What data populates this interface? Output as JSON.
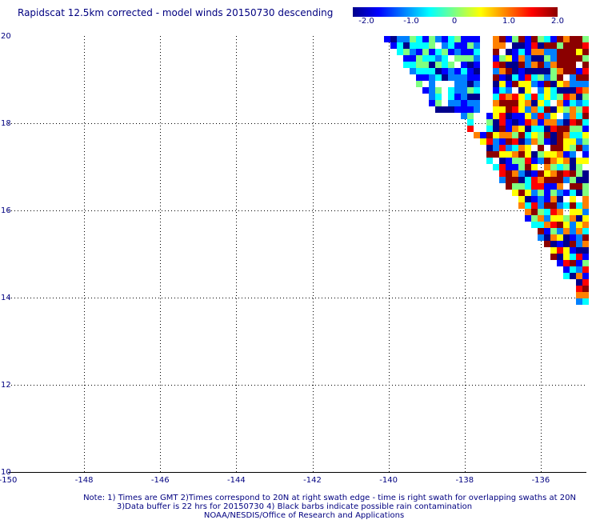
{
  "title": "Rapidscat 12.5km corrected - model winds 20150730 descending",
  "colorbar": {
    "labels": [
      "-2.0",
      "-1.0",
      "0",
      "1.0",
      "2.0"
    ],
    "values": [
      -2.0,
      -1.0,
      0,
      1.0,
      2.0
    ],
    "range": [
      -2.0,
      2.0
    ],
    "colors": [
      "#00008b",
      "#0000ff",
      "#0080ff",
      "#00ffff",
      "#80ff80",
      "#ffff00",
      "#ff8000",
      "#ff0000",
      "#8b0000"
    ]
  },
  "axes": {
    "lon_labels": [
      "-150",
      "-148",
      "-146",
      "-144",
      "-142",
      "-140",
      "-138",
      "-136"
    ],
    "lon_values": [
      -150,
      -148,
      -146,
      -144,
      -142,
      -140,
      -138,
      -136
    ],
    "lat_labels": [
      "20",
      "18",
      "16",
      "14",
      "12",
      "10"
    ],
    "lat_values": [
      20,
      18,
      16,
      14,
      12,
      10
    ],
    "lon_range": [
      -150,
      -134.8
    ],
    "lat_range": [
      10,
      20
    ],
    "grid": true
  },
  "notes": {
    "line1": "Note: 1) Times are GMT 2)Times correspond to 20N at right swath edge - time is right swath for overlapping swaths at 20N",
    "line2": "3)Data buffer is 22 hrs for 20150730 4) Black barbs indicate possible rain contamination",
    "line3": "NOAA/NESDIS/Office of Research and Applications"
  }
}
